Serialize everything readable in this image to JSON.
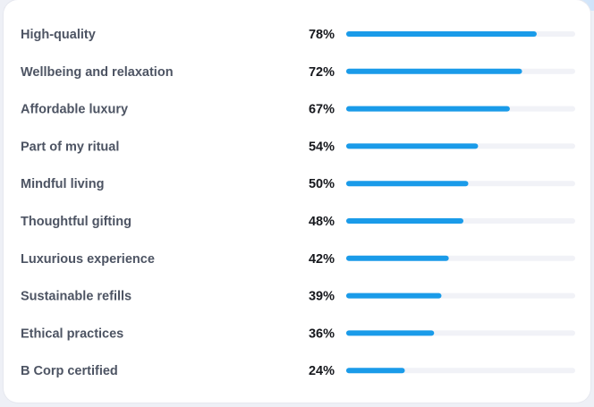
{
  "chart_data": {
    "type": "bar",
    "orientation": "horizontal",
    "title": "",
    "xlabel": "",
    "ylabel": "",
    "xlim": [
      0,
      100
    ],
    "grid": false,
    "legend": "none",
    "bar_color": "#1a9be9",
    "track_color": "#f1f2f7",
    "categories": [
      "High-quality",
      "Wellbeing and relaxation",
      "Affordable luxury",
      "Part of my ritual",
      "Mindful living",
      "Thoughtful gifting",
      "Luxurious experience",
      "Sustainable refills",
      "Ethical practices",
      "B Corp certified"
    ],
    "values": [
      78,
      72,
      67,
      54,
      50,
      48,
      42,
      39,
      36,
      24
    ],
    "value_labels": [
      "78%",
      "72%",
      "67%",
      "54%",
      "50%",
      "48%",
      "42%",
      "39%",
      "36%",
      "24%"
    ]
  }
}
